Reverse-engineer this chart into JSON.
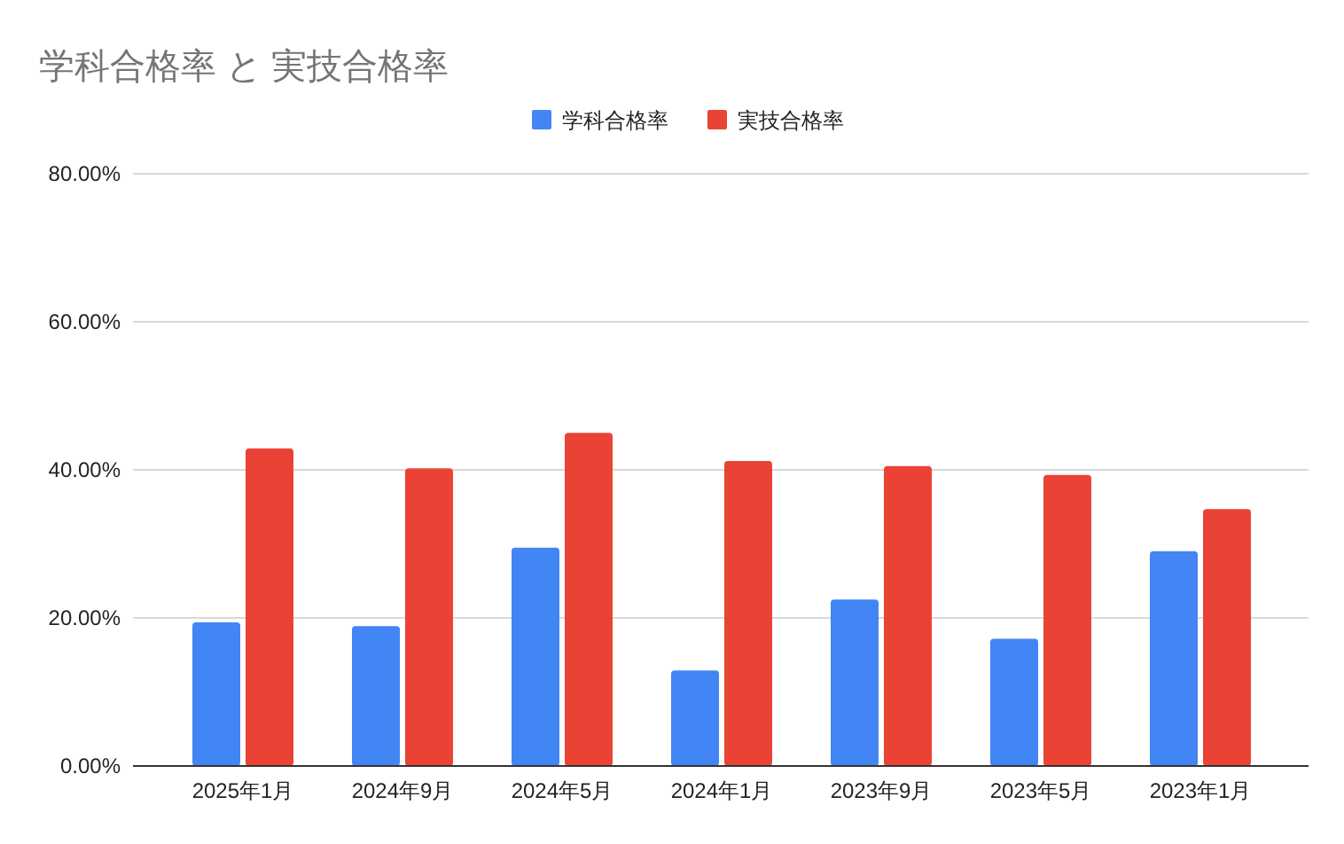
{
  "chart_data": {
    "type": "bar",
    "title": "学科合格率 と 実技合格率",
    "categories": [
      "2025年1月",
      "2024年9月",
      "2024年5月",
      "2024年1月",
      "2023年9月",
      "2023年5月",
      "2023年1月"
    ],
    "series": [
      {
        "name": "学科合格率",
        "color": "#4285f4",
        "values": [
          19.4,
          18.9,
          29.5,
          12.9,
          22.5,
          17.2,
          29.0
        ]
      },
      {
        "name": "実技合格率",
        "color": "#ea4335",
        "values": [
          42.9,
          40.2,
          45.0,
          41.2,
          40.5,
          39.3,
          34.7
        ]
      }
    ],
    "ylim": [
      0,
      80
    ],
    "yticks": [
      {
        "value": 0,
        "label": "0.00%"
      },
      {
        "value": 20,
        "label": "20.00%"
      },
      {
        "value": 40,
        "label": "40.00%"
      },
      {
        "value": 60,
        "label": "60.00%"
      },
      {
        "value": 80,
        "label": "80.00%"
      }
    ],
    "grid": "y",
    "legend": "top"
  }
}
